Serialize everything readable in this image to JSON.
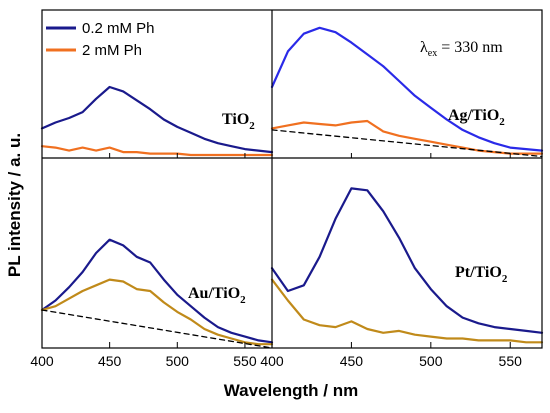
{
  "figure": {
    "ylabel": "PL intensity  / a. u.",
    "xlabel": "Wavelength / nm",
    "legend": {
      "placement": "top-left of first panel",
      "entries": [
        {
          "label": "0.2 mM Ph",
          "color": "#1a1a8c"
        },
        {
          "label": "2 mM Ph",
          "color": "#f07020"
        }
      ]
    },
    "excitation": {
      "lambda": "λ",
      "sub": "ex",
      "rest": " = 330 nm"
    }
  },
  "chart_data": [
    {
      "type": "line",
      "panel": "top-left",
      "label_main": "TiO",
      "label_sub": "2",
      "xlim": [
        400,
        570
      ],
      "x_ticks": [
        "400",
        "450",
        "500",
        "550"
      ],
      "ylim": [
        0,
        100
      ],
      "y_ticks": false,
      "series": [
        {
          "name": "0.2 mM Ph",
          "color": "#1a1a8c",
          "x": [
            400,
            410,
            420,
            430,
            440,
            450,
            460,
            470,
            480,
            490,
            500,
            510,
            520,
            530,
            540,
            550,
            560,
            570
          ],
          "y": [
            20,
            24,
            27,
            31,
            40,
            48,
            45,
            39,
            33,
            26,
            21,
            17,
            13,
            10,
            8,
            6,
            5,
            4
          ]
        },
        {
          "name": "2 mM Ph",
          "color": "#f07020",
          "x": [
            400,
            410,
            420,
            430,
            440,
            450,
            460,
            470,
            480,
            490,
            500,
            510,
            520,
            530,
            540,
            550,
            560,
            570
          ],
          "y": [
            8,
            7,
            5,
            7,
            5,
            7,
            4,
            4,
            3,
            3,
            3,
            2,
            2,
            2,
            2,
            2,
            2,
            2
          ]
        }
      ]
    },
    {
      "type": "line",
      "panel": "top-right",
      "label_main": "Ag/TiO",
      "label_sub": "2",
      "xlim": [
        400,
        570
      ],
      "x_ticks": [
        "400",
        "450",
        "500",
        "550"
      ],
      "ylim": [
        0,
        100
      ],
      "y_ticks": false,
      "series": [
        {
          "name": "0.2 mM Ph",
          "color": "#2a2ae8",
          "x": [
            400,
            410,
            420,
            430,
            440,
            450,
            460,
            470,
            480,
            490,
            500,
            510,
            520,
            530,
            540,
            550,
            560,
            570
          ],
          "y": [
            48,
            72,
            84,
            88,
            85,
            78,
            70,
            62,
            52,
            42,
            34,
            26,
            19,
            14,
            10,
            7,
            6,
            5
          ]
        },
        {
          "name": "2 mM Ph",
          "color": "#f07020",
          "x": [
            400,
            410,
            420,
            430,
            440,
            450,
            460,
            470,
            480,
            490,
            500,
            510,
            520,
            530,
            540,
            550,
            560,
            570
          ],
          "y": [
            20,
            22,
            24,
            23,
            22,
            24,
            25,
            18,
            15,
            13,
            11,
            9,
            7,
            5,
            4,
            3,
            3,
            3
          ]
        },
        {
          "name": "",
          "color": "#000000",
          "dashed": true,
          "x": [
            400,
            570
          ],
          "y": [
            19,
            1
          ]
        }
      ]
    },
    {
      "type": "line",
      "panel": "bottom-left",
      "label_main": "Au/TiO",
      "label_sub": "2",
      "xlim": [
        400,
        570
      ],
      "x_ticks": [
        "400",
        "450",
        "500",
        "550"
      ],
      "ylim": [
        0,
        100
      ],
      "y_ticks": false,
      "series": [
        {
          "name": "0.2 mM Ph",
          "color": "#1a1a8c",
          "x": [
            400,
            410,
            420,
            430,
            440,
            450,
            460,
            470,
            480,
            490,
            500,
            510,
            520,
            530,
            540,
            550,
            560,
            570
          ],
          "y": [
            20,
            25,
            32,
            40,
            50,
            57,
            54,
            48,
            45,
            36,
            28,
            22,
            16,
            11,
            8,
            6,
            4,
            3
          ]
        },
        {
          "name": "2 mM Ph",
          "color": "#c08a1a",
          "x": [
            400,
            410,
            420,
            430,
            440,
            450,
            460,
            470,
            480,
            490,
            500,
            510,
            520,
            530,
            540,
            550,
            560,
            570
          ],
          "y": [
            20,
            22,
            26,
            30,
            33,
            36,
            35,
            31,
            30,
            24,
            19,
            15,
            10,
            7,
            5,
            3,
            2,
            2
          ]
        },
        {
          "name": "",
          "color": "#000000",
          "dashed": true,
          "x": [
            400,
            570
          ],
          "y": [
            20,
            0
          ]
        }
      ]
    },
    {
      "type": "line",
      "panel": "bottom-right",
      "label_main": "Pt/TiO",
      "label_sub": "2",
      "xlim": [
        400,
        570
      ],
      "x_ticks": [
        "400",
        "450",
        "500",
        "550"
      ],
      "ylim": [
        0,
        100
      ],
      "y_ticks": false,
      "series": [
        {
          "name": "0.2 mM Ph",
          "color": "#1a1a8c",
          "x": [
            400,
            410,
            420,
            430,
            440,
            450,
            460,
            470,
            480,
            490,
            500,
            510,
            520,
            530,
            540,
            550,
            560,
            570
          ],
          "y": [
            42,
            30,
            33,
            48,
            68,
            84,
            83,
            72,
            58,
            42,
            31,
            22,
            16,
            13,
            11,
            10,
            9,
            8
          ]
        },
        {
          "name": "2 mM Ph",
          "color": "#c08a1a",
          "x": [
            400,
            410,
            420,
            430,
            440,
            450,
            460,
            470,
            480,
            490,
            500,
            510,
            520,
            530,
            540,
            550,
            560,
            570
          ],
          "y": [
            36,
            25,
            15,
            12,
            11,
            14,
            10,
            8,
            9,
            7,
            6,
            5,
            5,
            4,
            4,
            4,
            3,
            3
          ]
        }
      ]
    }
  ]
}
